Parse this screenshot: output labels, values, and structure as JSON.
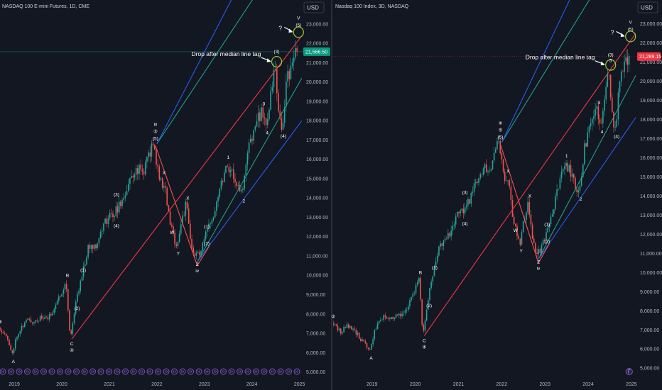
{
  "chart_data": [
    {
      "type": "candlestick",
      "title": "NASDAQ 100 E-mini Futures, 1D, CME",
      "currency": "USD",
      "last_price": 21566.5,
      "last_price_label": "21,566.50",
      "last_price_color": "#089981",
      "annotation": "Drop after median line tag",
      "question": "?",
      "x_ticks": [
        "2019",
        "2020",
        "2021",
        "2022",
        "2023",
        "2024",
        "2025"
      ],
      "y_ticks": [
        "5,000.00",
        "6,000.00",
        "7,000.00",
        "8,000.00",
        "9,000.00",
        "10,000.00",
        "11,000.00",
        "12,000.00",
        "13,000.00",
        "14,000.00",
        "15,000.00",
        "16,000.00",
        "17,000.00",
        "18,000.00",
        "19,000.00",
        "20,000.00",
        "21,000.00",
        "22,000.00",
        "23,000.00"
      ],
      "y_range": [
        4800,
        23800
      ],
      "x_range": [
        2018.7,
        2025.05
      ],
      "price_path": [
        [
          2018.7,
          7300
        ],
        [
          2018.85,
          7000
        ],
        [
          2018.98,
          5900
        ],
        [
          2019.1,
          7000
        ],
        [
          2019.3,
          7700
        ],
        [
          2019.42,
          7600
        ],
        [
          2019.6,
          7800
        ],
        [
          2019.75,
          7750
        ],
        [
          2019.95,
          8700
        ],
        [
          2020.12,
          9700
        ],
        [
          2020.21,
          6700
        ],
        [
          2020.32,
          8500
        ],
        [
          2020.45,
          10000
        ],
        [
          2020.6,
          11500
        ],
        [
          2020.75,
          11600
        ],
        [
          2020.95,
          12800
        ],
        [
          2021.15,
          13300
        ],
        [
          2021.3,
          13800
        ],
        [
          2021.45,
          14800
        ],
        [
          2021.6,
          15500
        ],
        [
          2021.75,
          15400
        ],
        [
          2021.9,
          16500
        ],
        [
          2021.97,
          16700
        ],
        [
          2022.08,
          15000
        ],
        [
          2022.2,
          14600
        ],
        [
          2022.32,
          12500
        ],
        [
          2022.45,
          11500
        ],
        [
          2022.55,
          12800
        ],
        [
          2022.65,
          13700
        ],
        [
          2022.75,
          11500
        ],
        [
          2022.85,
          11000
        ],
        [
          2022.95,
          11200
        ],
        [
          2023.05,
          12000
        ],
        [
          2023.2,
          13000
        ],
        [
          2023.35,
          14500
        ],
        [
          2023.5,
          15800
        ],
        [
          2023.62,
          15300
        ],
        [
          2023.75,
          14500
        ],
        [
          2023.83,
          14200
        ],
        [
          2023.95,
          16500
        ],
        [
          2024.1,
          17800
        ],
        [
          2024.25,
          18500
        ],
        [
          2024.32,
          17800
        ],
        [
          2024.45,
          19500
        ],
        [
          2024.52,
          20900
        ],
        [
          2024.58,
          18500
        ],
        [
          2024.66,
          17500
        ],
        [
          2024.76,
          20000
        ],
        [
          2024.88,
          21000
        ],
        [
          2024.98,
          21550
        ]
      ],
      "pitchfork": {
        "median": [
          [
            2020.21,
            6700
          ],
          [
            2025.05,
            22400
          ]
        ],
        "upper_green": [
          [
            2022.0,
            16800
          ],
          [
            2025.05,
            28100
          ]
        ],
        "lower_green": [
          [
            2022.85,
            10700
          ],
          [
            2025.05,
            20200
          ]
        ],
        "upper_blue": [
          [
            2022.0,
            16800
          ],
          [
            2025.05,
            31300
          ]
        ],
        "lower_blue": [
          [
            2022.85,
            10700
          ],
          [
            2025.05,
            18000
          ]
        ],
        "corrective": [
          [
            2021.97,
            16700
          ],
          [
            2022.85,
            10500
          ],
          [
            2023.1,
            11500
          ]
        ]
      },
      "wave_labels": [
        {
          "t": "③",
          "x": 2018.7,
          "y": 7300,
          "dy": -6
        },
        {
          "t": "A",
          "x": 2018.98,
          "y": 5900,
          "dy": 12
        },
        {
          "t": "B",
          "x": 2020.12,
          "y": 9700,
          "dy": -6
        },
        {
          "t": "(1)",
          "x": 2020.45,
          "y": 10000,
          "dy": -5
        },
        {
          "t": "(2)",
          "x": 2020.32,
          "y": 8500,
          "dy": 8
        },
        {
          "t": "C",
          "x": 2020.21,
          "y": 6700,
          "dy": 9
        },
        {
          "t": "④",
          "x": 2020.21,
          "y": 6700,
          "dy": 18
        },
        {
          "t": "(3)",
          "x": 2021.15,
          "y": 13300,
          "dy": -22
        },
        {
          "t": "(4)",
          "x": 2021.15,
          "y": 13300,
          "dy": 22
        },
        {
          "t": "iii",
          "x": 2021.97,
          "y": 16700,
          "dy": -28
        },
        {
          "t": "⑤",
          "x": 2021.97,
          "y": 16700,
          "dy": -18
        },
        {
          "t": "(5)",
          "x": 2021.97,
          "y": 16700,
          "dy": -8
        },
        {
          "t": "X",
          "x": 2022.15,
          "y": 15000,
          "dy": -6
        },
        {
          "t": "W",
          "x": 2022.32,
          "y": 12500,
          "dy": 10
        },
        {
          "t": "X",
          "x": 2022.65,
          "y": 13700,
          "dy": -6
        },
        {
          "t": "Y",
          "x": 2022.45,
          "y": 11500,
          "dy": 12
        },
        {
          "t": "(1)",
          "x": 2023.05,
          "y": 12000,
          "dy": -12
        },
        {
          "t": "(2)",
          "x": 2023.05,
          "y": 12000,
          "dy": 12
        },
        {
          "t": "Z",
          "x": 2022.85,
          "y": 11000,
          "dy": 14
        },
        {
          "t": "iv",
          "x": 2022.85,
          "y": 11000,
          "dy": 23
        },
        {
          "t": "1",
          "x": 2023.5,
          "y": 15800,
          "dy": -6
        },
        {
          "t": "2",
          "x": 2023.83,
          "y": 14200,
          "dy": 12
        },
        {
          "t": "3",
          "x": 2024.25,
          "y": 18500,
          "dy": -8
        },
        {
          "t": "4",
          "x": 2024.32,
          "y": 17800,
          "dy": 14
        },
        {
          "t": "(4)",
          "x": 2024.66,
          "y": 17500,
          "dy": 10
        },
        {
          "t": "(3)",
          "x": 2024.52,
          "y": 20900,
          "dy": -16
        },
        {
          "t": "V",
          "x": 2024.98,
          "y": 21550,
          "dy": -46
        },
        {
          "t": "(5)",
          "x": 2024.98,
          "y": 21550,
          "dy": -36
        }
      ]
    },
    {
      "type": "candlestick",
      "title": "Nasdaq 100 Index, 3D, NASDAQ",
      "currency": "USD",
      "last_price": 21289.15,
      "last_price_label": "21,289.15",
      "last_price_color": "#f23645",
      "annotation": "Drop after median line tag",
      "question": "?",
      "x_ticks": [
        "2019",
        "2020",
        "2021",
        "2022",
        "2023",
        "2024",
        "2025"
      ],
      "y_ticks": [
        "5,000.00",
        "6,000.00",
        "7,000.00",
        "8,000.00",
        "9,000.00",
        "10,000.00",
        "11,000.00",
        "12,000.00",
        "13,000.00",
        "14,000.00",
        "15,000.00",
        "16,000.00",
        "17,000.00",
        "18,000.00",
        "19,000.00",
        "20,000.00",
        "21,000.00",
        "22,000.00",
        "23,000.00"
      ],
      "y_range": [
        4600,
        23800
      ],
      "x_range": [
        2018.1,
        2025.1
      ],
      "price_path": [
        [
          2018.1,
          7400
        ],
        [
          2018.3,
          6900
        ],
        [
          2018.45,
          7200
        ],
        [
          2018.65,
          6900
        ],
        [
          2018.98,
          5900
        ],
        [
          2019.1,
          7000
        ],
        [
          2019.3,
          7700
        ],
        [
          2019.42,
          7600
        ],
        [
          2019.6,
          7800
        ],
        [
          2019.75,
          7750
        ],
        [
          2019.95,
          8700
        ],
        [
          2020.12,
          9700
        ],
        [
          2020.21,
          6700
        ],
        [
          2020.32,
          8500
        ],
        [
          2020.45,
          10000
        ],
        [
          2020.6,
          11500
        ],
        [
          2020.75,
          11600
        ],
        [
          2020.95,
          12800
        ],
        [
          2021.15,
          13300
        ],
        [
          2021.3,
          13800
        ],
        [
          2021.45,
          14800
        ],
        [
          2021.6,
          15500
        ],
        [
          2021.75,
          15400
        ],
        [
          2021.9,
          16500
        ],
        [
          2021.97,
          16700
        ],
        [
          2022.08,
          15000
        ],
        [
          2022.2,
          14600
        ],
        [
          2022.32,
          12500
        ],
        [
          2022.45,
          11500
        ],
        [
          2022.55,
          12800
        ],
        [
          2022.65,
          13700
        ],
        [
          2022.75,
          11500
        ],
        [
          2022.85,
          11000
        ],
        [
          2022.95,
          11200
        ],
        [
          2023.05,
          12000
        ],
        [
          2023.2,
          13000
        ],
        [
          2023.35,
          14500
        ],
        [
          2023.5,
          15800
        ],
        [
          2023.62,
          15300
        ],
        [
          2023.75,
          14500
        ],
        [
          2023.83,
          14200
        ],
        [
          2023.95,
          16500
        ],
        [
          2024.1,
          17800
        ],
        [
          2024.25,
          18500
        ],
        [
          2024.32,
          17800
        ],
        [
          2024.45,
          19500
        ],
        [
          2024.52,
          20700
        ],
        [
          2024.58,
          18500
        ],
        [
          2024.66,
          17400
        ],
        [
          2024.76,
          19800
        ],
        [
          2024.88,
          20900
        ],
        [
          2024.98,
          21300
        ]
      ],
      "pitchfork": {
        "median": [
          [
            2020.21,
            6700
          ],
          [
            2025.1,
            22500
          ]
        ],
        "upper_green": [
          [
            2022.0,
            16800
          ],
          [
            2025.1,
            28200
          ]
        ],
        "lower_green": [
          [
            2022.85,
            10700
          ],
          [
            2025.1,
            20300
          ]
        ],
        "upper_blue": [
          [
            2022.0,
            16800
          ],
          [
            2025.1,
            31500
          ]
        ],
        "lower_blue": [
          [
            2022.85,
            10700
          ],
          [
            2025.1,
            18100
          ]
        ],
        "corrective": [
          [
            2021.97,
            16700
          ],
          [
            2022.85,
            10500
          ],
          [
            2023.1,
            11500
          ]
        ]
      },
      "wave_labels": [
        {
          "t": "③",
          "x": 2018.1,
          "y": 7400,
          "dy": -6
        },
        {
          "t": "A",
          "x": 2018.98,
          "y": 5900,
          "dy": 12
        },
        {
          "t": "B",
          "x": 2020.12,
          "y": 9700,
          "dy": -6
        },
        {
          "t": "(1)",
          "x": 2020.45,
          "y": 10000,
          "dy": -5
        },
        {
          "t": "(2)",
          "x": 2020.32,
          "y": 8500,
          "dy": 8
        },
        {
          "t": "C",
          "x": 2020.21,
          "y": 6700,
          "dy": 9
        },
        {
          "t": "④",
          "x": 2020.21,
          "y": 6700,
          "dy": 18
        },
        {
          "t": "(3)",
          "x": 2021.15,
          "y": 13300,
          "dy": -22
        },
        {
          "t": "(4)",
          "x": 2021.15,
          "y": 13300,
          "dy": 22
        },
        {
          "t": "iii",
          "x": 2021.97,
          "y": 16700,
          "dy": -28
        },
        {
          "t": "⑤",
          "x": 2021.97,
          "y": 16700,
          "dy": -18
        },
        {
          "t": "(5)",
          "x": 2021.97,
          "y": 16700,
          "dy": -8
        },
        {
          "t": "X",
          "x": 2022.15,
          "y": 15000,
          "dy": -6
        },
        {
          "t": "W",
          "x": 2022.32,
          "y": 12500,
          "dy": 10
        },
        {
          "t": "X",
          "x": 2022.65,
          "y": 13700,
          "dy": -6
        },
        {
          "t": "Y",
          "x": 2022.45,
          "y": 11500,
          "dy": 12
        },
        {
          "t": "(1)",
          "x": 2023.05,
          "y": 12000,
          "dy": -12
        },
        {
          "t": "(2)",
          "x": 2023.05,
          "y": 12000,
          "dy": 12
        },
        {
          "t": "Z",
          "x": 2022.85,
          "y": 11000,
          "dy": 14
        },
        {
          "t": "iv",
          "x": 2022.85,
          "y": 11000,
          "dy": 23
        },
        {
          "t": "1",
          "x": 2023.5,
          "y": 15800,
          "dy": -6
        },
        {
          "t": "2",
          "x": 2023.83,
          "y": 14200,
          "dy": 12
        },
        {
          "t": "3",
          "x": 2024.25,
          "y": 18500,
          "dy": -8
        },
        {
          "t": "4",
          "x": 2024.32,
          "y": 17800,
          "dy": 14
        },
        {
          "t": "(4)",
          "x": 2024.66,
          "y": 17400,
          "dy": 10
        },
        {
          "t": "(3)",
          "x": 2024.52,
          "y": 20700,
          "dy": -16
        },
        {
          "t": "5",
          "x": 2024.52,
          "y": 20700,
          "dy": -8
        },
        {
          "t": "V",
          "x": 2024.98,
          "y": 21300,
          "dy": -46
        },
        {
          "t": "(5)",
          "x": 2024.98,
          "y": 21300,
          "dy": -36
        }
      ]
    }
  ],
  "colors": {
    "background": "#131722",
    "up": "#26a69a",
    "down": "#ef5350",
    "median": "#f23645",
    "green_line": "#22ab94",
    "blue_line": "#2962ff",
    "corrective": "#ef5350",
    "ellipse": "#9acd32",
    "event_icon": "#7e57c2"
  }
}
